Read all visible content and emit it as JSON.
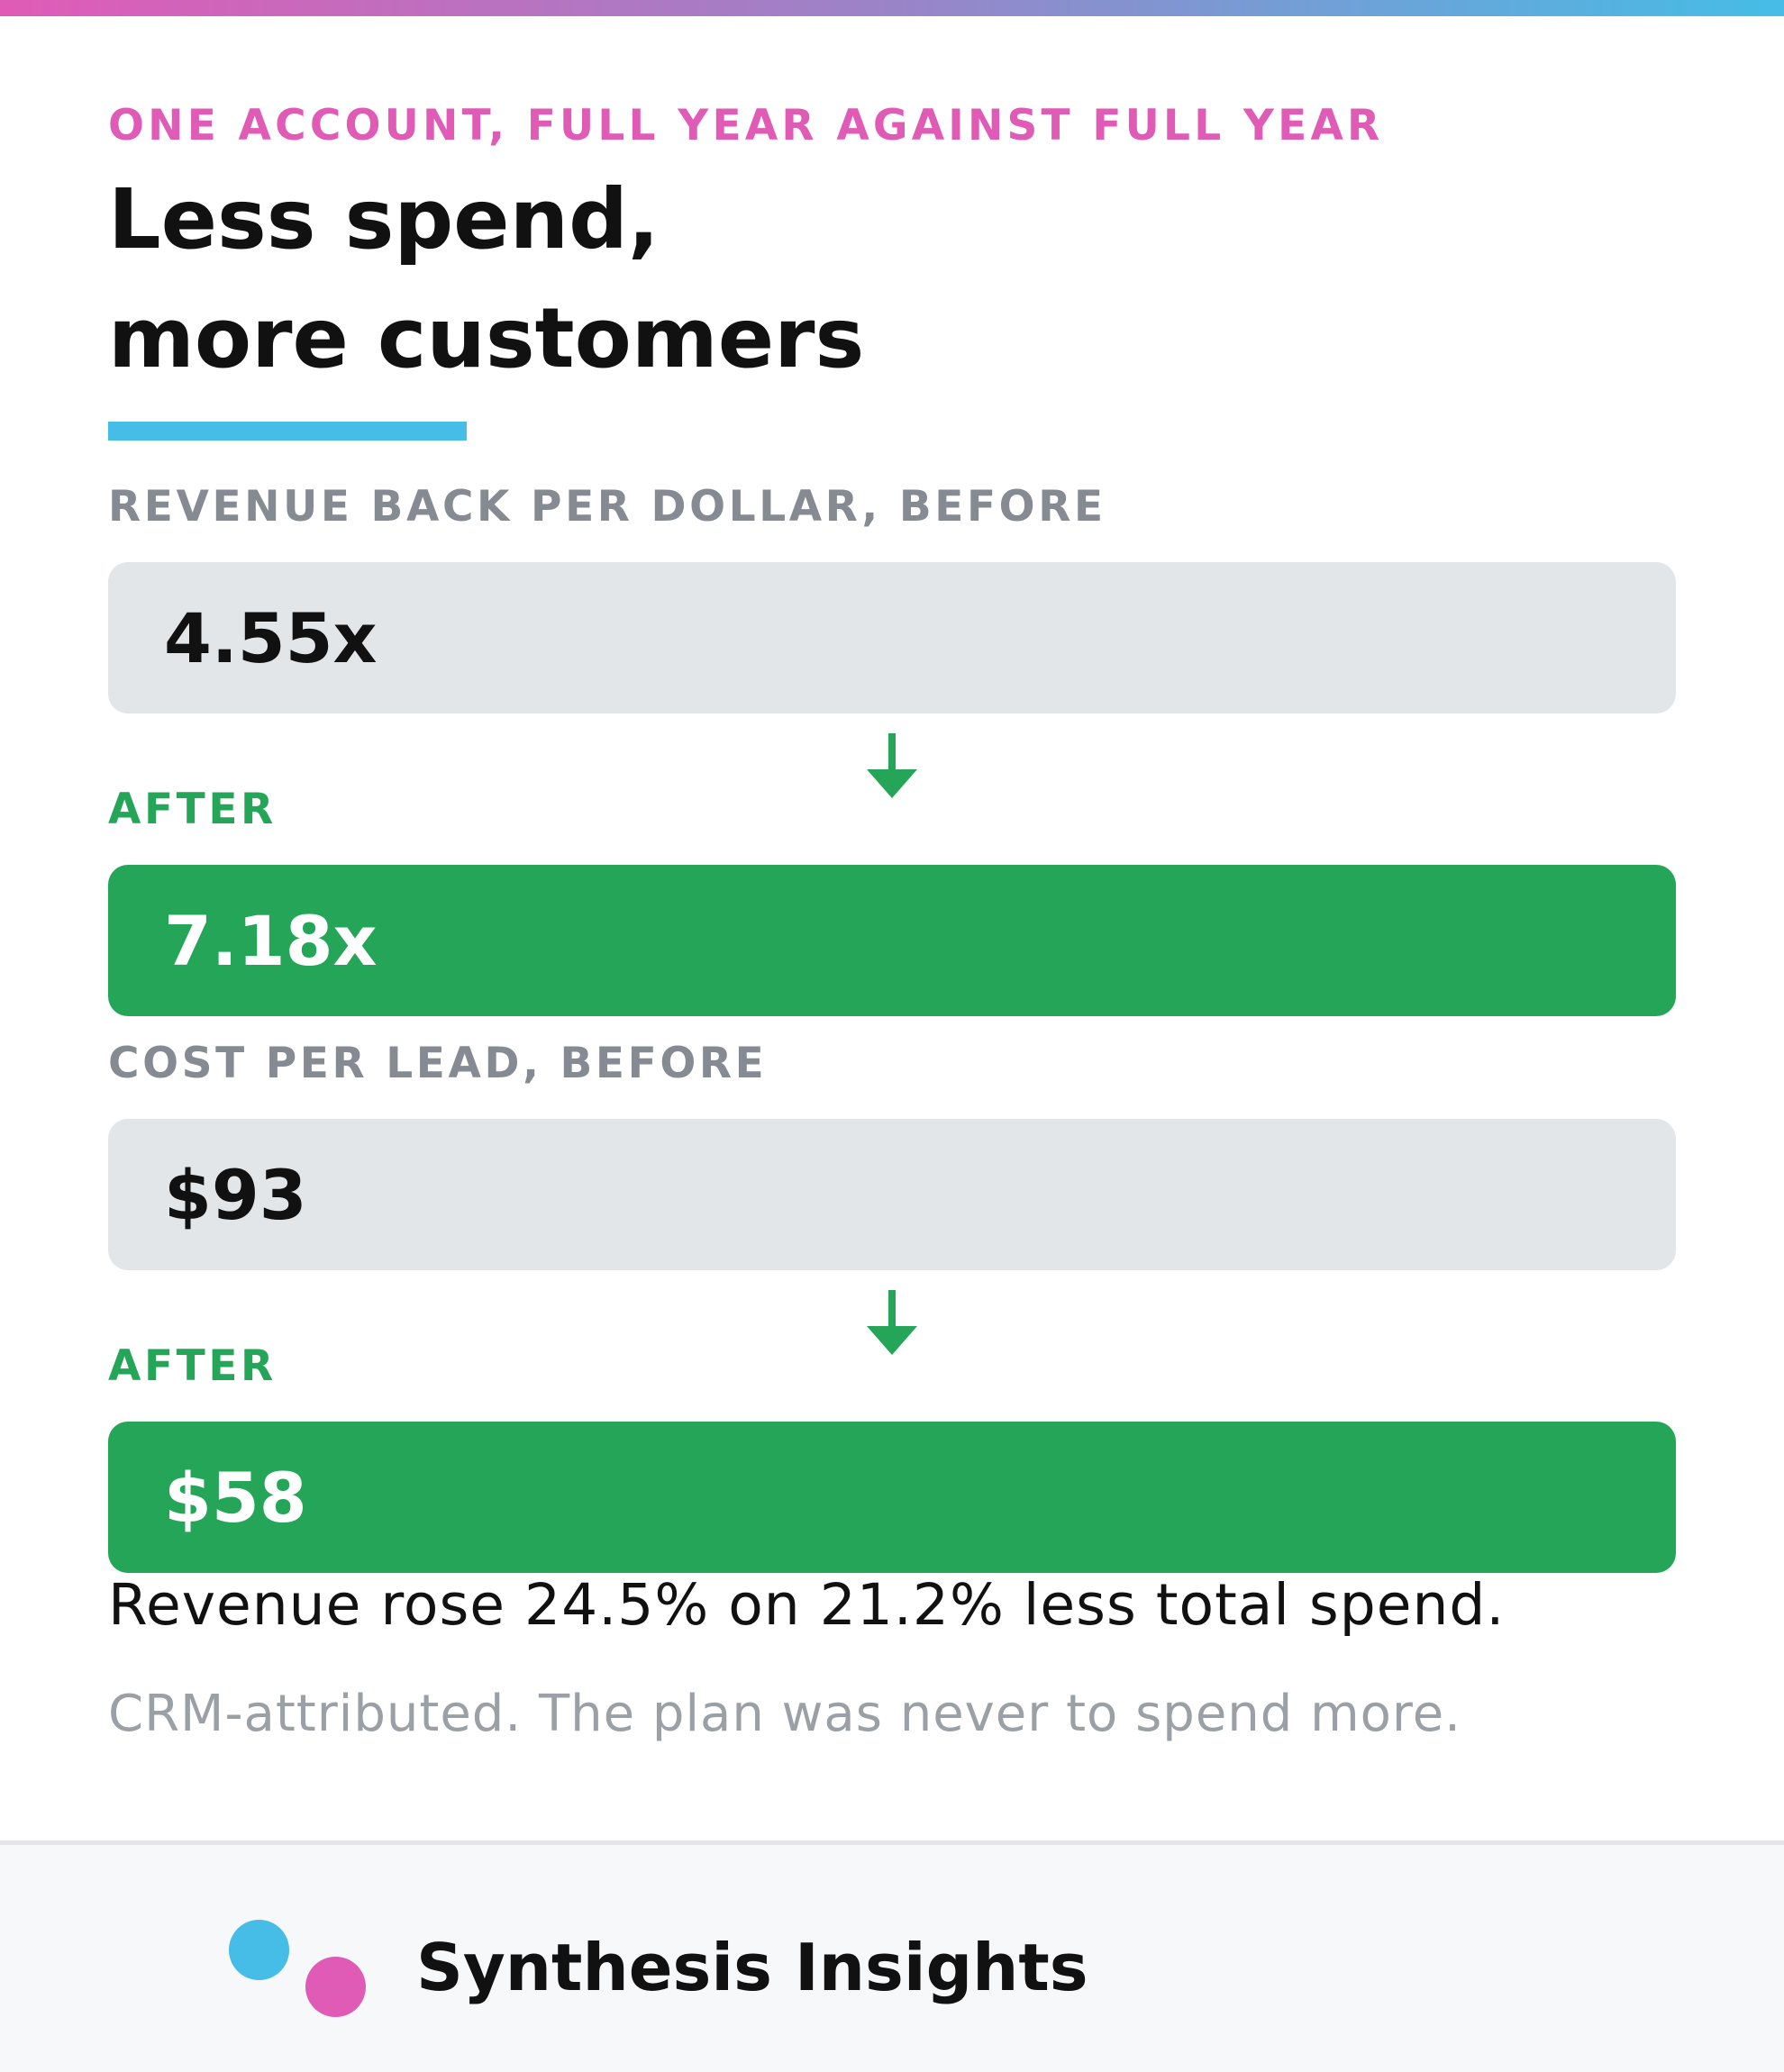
{
  "colors": {
    "accent_pink": "#e05bb6",
    "accent_blue": "#45bde6",
    "positive_green": "#25a558",
    "before_box": "#e3e6e9",
    "label_gray": "#868b93"
  },
  "header": {
    "eyebrow": "ONE ACCOUNT, FULL YEAR AGAINST FULL YEAR",
    "title_line1": "Less spend,",
    "title_line2": "more customers"
  },
  "metrics": [
    {
      "before_label": "REVENUE BACK PER DOLLAR, BEFORE",
      "before_value": "4.55x",
      "after_label": "AFTER",
      "after_value": "7.18x",
      "arrow_icon": "arrow-down-icon"
    },
    {
      "before_label": "COST PER LEAD, BEFORE",
      "before_value": "$93",
      "after_label": "AFTER",
      "after_value": "$58",
      "arrow_icon": "arrow-down-icon"
    }
  ],
  "summary": {
    "headline": "Revenue rose 24.5% on 21.2% less total spend.",
    "footnote": "CRM-attributed. The plan was never to spend more."
  },
  "footer": {
    "brand_name": "Synthesis Insights",
    "logo_icon": "two-dots-logo-icon"
  }
}
